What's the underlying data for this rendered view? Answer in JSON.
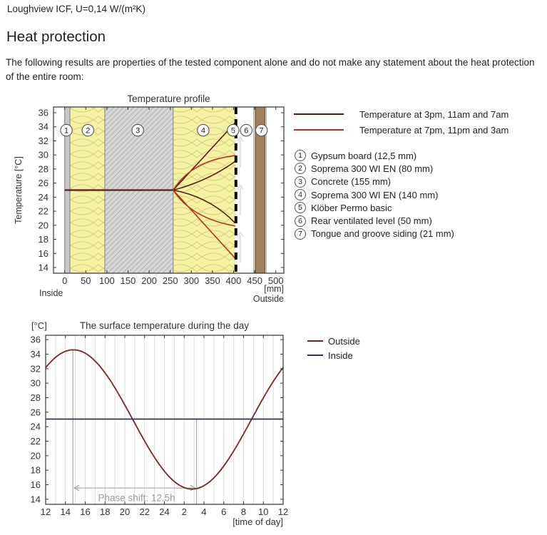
{
  "header": {
    "title": "Loughview ICF, U=0,14 W/(m²K)",
    "heading": "Heat protection",
    "description": "The following results are properties of the tested component alone and do not make any statement about the heat protection of the entire room:"
  },
  "colors": {
    "dark_series": "#571f12",
    "red_series": "#b03524",
    "outside": "#7a2525",
    "inside": "#2c2c6e",
    "axis": "#333333",
    "tick_text": "#333333",
    "grid": "#dcdcdc",
    "annotation": "#9a9a9a",
    "insulation_fill": "#f6f2a3",
    "insulation_stroke": "#d6cf82",
    "concrete_fill": "#d6d6d6",
    "concrete_stroke": "#b2b2b2",
    "gypsum_fill": "#c6c6c6",
    "layer_edge": "#777777",
    "siding_fill": "#a3805a",
    "siding_edge": "#5a4526",
    "membrane": "#0a0a0a",
    "vent_arrow": "#d9d9d9"
  },
  "chart_data": [
    {
      "type": "line",
      "title": "Temperature profile",
      "ylabel": "Temperature  [°C]",
      "xlabel": "[mm]",
      "inside_label": "Inside",
      "outside_label": "Outside",
      "x_ticks": [
        0,
        50,
        100,
        150,
        200,
        250,
        300,
        350,
        400,
        450,
        500
      ],
      "y_ticks": [
        14,
        16,
        18,
        20,
        22,
        24,
        26,
        28,
        30,
        32,
        34,
        36
      ],
      "xlim": [
        -26.5,
        519
      ],
      "ylim": [
        13.19,
        36.81
      ],
      "legend": [
        {
          "label": "Temperature at 3pm, 11am and 7am",
          "series": "dark"
        },
        {
          "label": "Temperature at 7pm, 11pm and 3am",
          "series": "red"
        }
      ],
      "layer_list": [
        {
          "n": "1",
          "label": "Gypsum board (12,5 mm)"
        },
        {
          "n": "2",
          "label": "Soprema 300 WI EN (80 mm)"
        },
        {
          "n": "3",
          "label": "Concrete (155 mm)"
        },
        {
          "n": "4",
          "label": "Soprema 300 WI EN (140 mm)"
        },
        {
          "n": "5",
          "label": "Klöber Permo basic"
        },
        {
          "n": "6",
          "label": "Rear ventilated level (50 mm)"
        },
        {
          "n": "7",
          "label": "Tongue and groove siding (21 mm)"
        }
      ],
      "layers": {
        "gypsum": [
          0,
          12.5
        ],
        "insulation_inner": [
          12.5,
          95
        ],
        "concrete": [
          95,
          257
        ],
        "insulation_outer": [
          257,
          404
        ],
        "membrane_x": 405.5,
        "ventilated": [
          404,
          448
        ],
        "siding": [
          448,
          477
        ],
        "siding_plank": [
          451.5,
          474
        ],
        "edge_lines": [
          0,
          12.5,
          95,
          257,
          448,
          477
        ]
      },
      "layer_markers": {
        "y": 33.5,
        "x": [
          4,
          55,
          173,
          328,
          399,
          430,
          466
        ]
      },
      "vent_arrows": {
        "x": 416,
        "spans": [
          [
            28.2,
            32.6
          ],
          [
            21.5,
            25.8
          ],
          [
            14.7,
            19.1
          ]
        ]
      },
      "profile_lines": {
        "flat": {
          "x": [
            0,
            257
          ],
          "t": 25
        },
        "fan_start": {
          "x": 257,
          "t": 25
        },
        "fan_end_x": 404,
        "fan": [
          {
            "series": "dark",
            "time": "3pm",
            "end_t": 34.6,
            "ctrl": null
          },
          {
            "series": "red",
            "time": "7pm",
            "end_t": 29.9,
            "ctrl": [
              300,
              29.2
            ]
          },
          {
            "series": "dark",
            "time": "11am",
            "end_t": 29.1,
            "ctrl": [
              340,
              26.3
            ]
          },
          {
            "series": "dark",
            "time": "7am",
            "end_t": 20.3,
            "ctrl": [
              345,
              24.0
            ]
          },
          {
            "series": "red",
            "time": "11pm",
            "end_t": 19.9,
            "ctrl": [
              300,
              21.0
            ]
          },
          {
            "series": "red",
            "time": "3am",
            "end_t": 15.3,
            "ctrl": null
          }
        ]
      }
    },
    {
      "type": "line",
      "title": "The surface temperature during the day",
      "y_unit": "[°C]",
      "xlabel": "[time of day]",
      "x_tick_labels": [
        "12",
        "14",
        "16",
        "18",
        "20",
        "22",
        "24",
        "2",
        "4",
        "6",
        "8",
        "10",
        "12"
      ],
      "x_tick_hours": [
        12,
        14,
        16,
        18,
        20,
        22,
        24,
        26,
        28,
        30,
        32,
        34,
        36
      ],
      "y_ticks": [
        14,
        16,
        18,
        20,
        22,
        24,
        26,
        28,
        30,
        32,
        34,
        36
      ],
      "xlim": [
        12,
        36
      ],
      "ylim": [
        13.3,
        36.6
      ],
      "grid_every_hour": true,
      "legend": [
        {
          "label": "Outside",
          "series": "outside"
        },
        {
          "label": "Inside",
          "series": "inside"
        }
      ],
      "series": [
        {
          "name": "Outside",
          "series": "outside",
          "model": "cosine",
          "mean": 25,
          "amplitude": 9.6,
          "peak_hour": 14.8
        },
        {
          "name": "Inside",
          "series": "inside",
          "model": "constant",
          "value": 25.05
        }
      ],
      "phase_shift": {
        "label": "Phase shift: 12.5h",
        "from_hour": 14.75,
        "to_hour": 27.25,
        "arrow_t": 15.55,
        "label_x_hour": 17.3,
        "label_t": 13.75,
        "marker_top_t": [
          34.6,
          25.0
        ]
      }
    }
  ]
}
